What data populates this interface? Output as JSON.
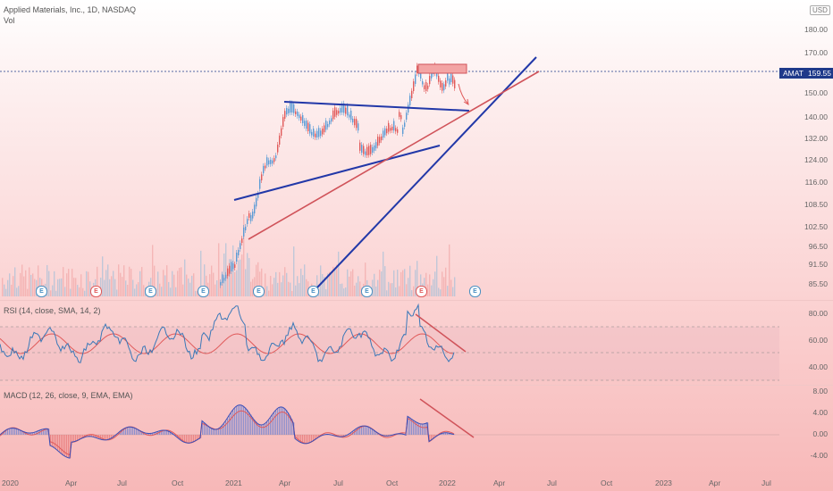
{
  "header": {
    "symbol_title": "Applied Materials, Inc., 1D, NASDAQ",
    "volume_label": "Vol",
    "currency_badge": "USD"
  },
  "price_tag": {
    "ticker": "AMAT",
    "value": "159.55"
  },
  "price_scale": [
    "180.00",
    "170.00",
    "160.00",
    "150.00",
    "140.00",
    "132.00",
    "124.00",
    "116.00",
    "108.50",
    "102.50",
    "96.50",
    "91.50",
    "85.50"
  ],
  "rsi": {
    "legend": {
      "name": "RSI",
      "params": "(14, close, SMA, 14, 2)"
    },
    "scale": [
      "80.00",
      "60.00",
      "40.00"
    ]
  },
  "macd": {
    "legend": {
      "name": "MACD",
      "params": "(12, 26, close, 9, EMA, EMA)"
    },
    "scale": [
      "8.00",
      "4.00",
      "0.00",
      "-4.00"
    ]
  },
  "time_axis": [
    "2020",
    "Apr",
    "Jul",
    "Oct",
    "2021",
    "Apr",
    "Jul",
    "Oct",
    "2022",
    "Apr",
    "Jul",
    "Oct",
    "2023",
    "Apr",
    "Jul"
  ],
  "earnings_markers": [
    {
      "label": "E",
      "tone": "blue"
    },
    {
      "label": "E",
      "tone": "red"
    },
    {
      "label": "E",
      "tone": "blue"
    },
    {
      "label": "E",
      "tone": "blue"
    },
    {
      "label": "E",
      "tone": "blue"
    },
    {
      "label": "E",
      "tone": "blue"
    },
    {
      "label": "E",
      "tone": "blue"
    },
    {
      "label": "E",
      "tone": "red"
    },
    {
      "label": "E",
      "tone": "blue"
    },
    {
      "label": "E",
      "tone": "red"
    }
  ],
  "colors": {
    "price_line": "#1e3a8a",
    "trend_blue": "#2238a8",
    "trend_red": "#d0535a",
    "candle_up": "#5b9bd5",
    "candle_down": "#e05a5a",
    "rsi_line": "#3a78b8",
    "rsi_signal": "#e05a5a",
    "macd_line": "#3a4fb8",
    "macd_signal": "#e05a5a"
  }
}
